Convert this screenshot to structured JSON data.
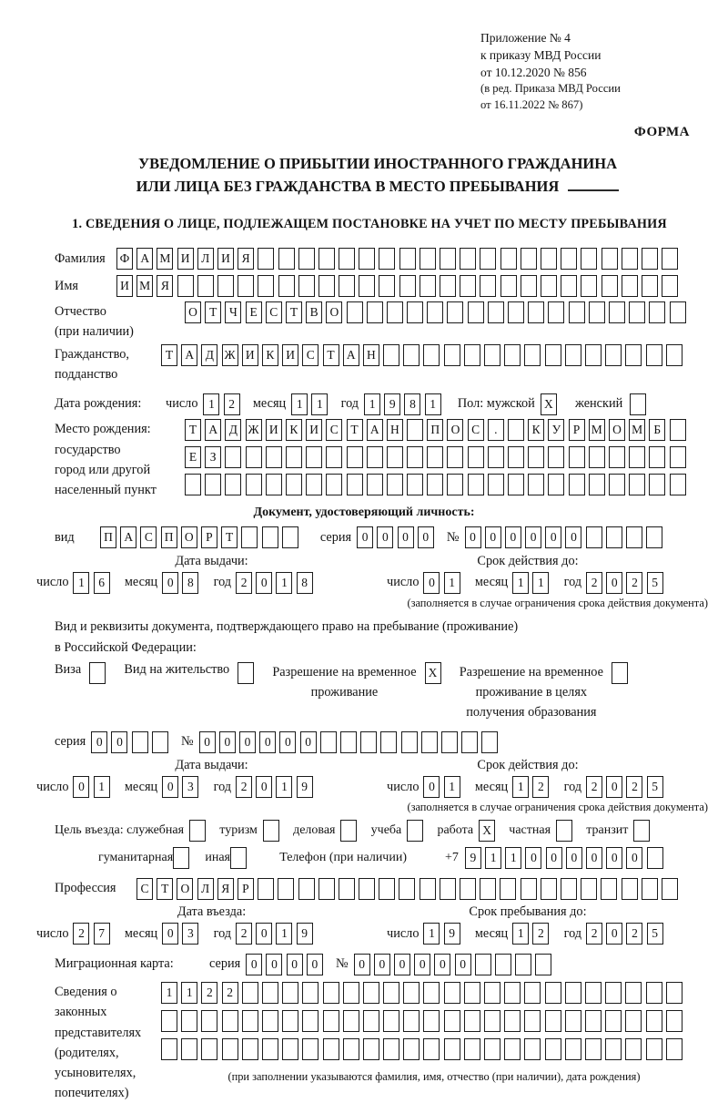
{
  "header": {
    "line1": "Приложение № 4",
    "line2": "к приказу МВД России",
    "line3": "от 10.12.2020 № 856",
    "line4": "(в ред. Приказа МВД России",
    "line5": "от 16.11.2022 № 867)",
    "form_label": "ФОРМА"
  },
  "title": {
    "line1": "УВЕДОМЛЕНИЕ О ПРИБЫТИИ ИНОСТРАННОГО ГРАЖДАНИНА",
    "line2": "ИЛИ ЛИЦА БЕЗ ГРАЖДАНСТВА В МЕСТО ПРЕБЫВАНИЯ"
  },
  "section1": {
    "heading": "1. СВЕДЕНИЯ О ЛИЦЕ, ПОДЛЕЖАЩЕМ ПОСТАНОВКЕ НА УЧЕТ ПО МЕСТУ ПРЕБЫВАНИЯ"
  },
  "labels": {
    "surname": "Фамилия",
    "name": "Имя",
    "patronymic1": "Отчество",
    "patronymic2": "(при наличии)",
    "citizenship1": "Гражданство,",
    "citizenship2": "подданство",
    "birth_date": "Дата рождения:",
    "day": "число",
    "month": "месяц",
    "year": "год",
    "sex_male": "Пол: мужской",
    "sex_female": "женский",
    "birth_place": "Место рождения:",
    "birth_place_state": "государство",
    "birth_place_city1": "город или другой",
    "birth_place_city2": "населенный пункт",
    "identity_doc": "Документ, удостоверяющий личность:",
    "kind": "вид",
    "series": "серия",
    "num": "№",
    "issue_date": "Дата выдачи:",
    "valid_until": "Срок действия до:",
    "limit_note": "(заполняется в случае ограничения срока действия документа)",
    "right_doc1": "Вид и реквизиты документа, подтверждающего право на пребывание (проживание)",
    "right_doc2": "в Российской Федерации:",
    "visa": "Виза",
    "residence_permit": "Вид на жительство",
    "temp_res1": "Разрешение на временное",
    "temp_res2": "проживание",
    "temp_res_edu1": "Разрешение на временное",
    "temp_res_edu2": "проживание в целях",
    "temp_res_edu3": "получения образования",
    "purpose": "Цель въезда: служебная",
    "tourism": "туризм",
    "business": "деловая",
    "study": "учеба",
    "work": "работа",
    "private": "частная",
    "transit": "транзит",
    "humanitarian": "гуманитарная",
    "other": "иная",
    "phone": "Телефон (при наличии)",
    "phone_code": "+7",
    "profession": "Профессия",
    "entry_date": "Дата въезда:",
    "stay_until": "Срок пребывания до:",
    "migration_card": "Миграционная карта:",
    "rep1": "Сведения о",
    "rep2": "законных",
    "rep3": "представителях",
    "rep4": "(родителях,",
    "rep5": "усыновителях,",
    "rep6": "попечителях)",
    "rep_note": "(при заполнении указываются фамилия, имя, отчество (при наличии), дата рождения)"
  },
  "boxes": {
    "surname": {
      "v": "ФАМИЛИЯ",
      "n": 28
    },
    "name": {
      "v": "ИМЯ",
      "n": 28
    },
    "patronymic": {
      "v": "ОТЧЕСТВО",
      "n": 25
    },
    "citizenship": {
      "v": "ТАДЖИКИСТАН",
      "n": 26
    },
    "birth_day": {
      "v": "12",
      "n": 2
    },
    "birth_month": {
      "v": "11",
      "n": 2
    },
    "birth_year": {
      "v": "1981",
      "n": 4
    },
    "male": {
      "v": "X",
      "n": 1
    },
    "female": {
      "v": "",
      "n": 1
    },
    "birthplace1": {
      "v": "ТАДЖИКИСТАН ПОС. КУРМОМБ",
      "n": 25
    },
    "birthplace2": {
      "v": "ЕЗ",
      "n": 25
    },
    "birthplace3": {
      "v": "",
      "n": 25
    },
    "doc_kind": {
      "v": "ПАСПОРТ",
      "n": 10
    },
    "doc_series": {
      "v": "0000",
      "n": 4
    },
    "doc_number": {
      "v": "000000",
      "n": 10
    },
    "doc_issue_day": {
      "v": "16",
      "n": 2
    },
    "doc_issue_month": {
      "v": "08",
      "n": 2
    },
    "doc_issue_year": {
      "v": "2018",
      "n": 4
    },
    "doc_valid_day": {
      "v": "01",
      "n": 2
    },
    "doc_valid_month": {
      "v": "11",
      "n": 2
    },
    "doc_valid_year": {
      "v": "2025",
      "n": 4
    },
    "visa": {
      "v": "",
      "n": 1
    },
    "residence_permit": {
      "v": "",
      "n": 1
    },
    "temp_residence": {
      "v": "X",
      "n": 1
    },
    "temp_residence_edu": {
      "v": "",
      "n": 1
    },
    "permit_series": {
      "v": "00",
      "n": 4
    },
    "permit_number": {
      "v": "000000",
      "n": 15
    },
    "permit_issue_day": {
      "v": "01",
      "n": 2
    },
    "permit_issue_month": {
      "v": "03",
      "n": 2
    },
    "permit_issue_year": {
      "v": "2019",
      "n": 4
    },
    "permit_valid_day": {
      "v": "01",
      "n": 2
    },
    "permit_valid_month": {
      "v": "12",
      "n": 2
    },
    "permit_valid_year": {
      "v": "2025",
      "n": 4
    },
    "p_official": {
      "v": "",
      "n": 1
    },
    "p_tourism": {
      "v": "",
      "n": 1
    },
    "p_business": {
      "v": "",
      "n": 1
    },
    "p_study": {
      "v": "",
      "n": 1
    },
    "p_work": {
      "v": "X",
      "n": 1
    },
    "p_private": {
      "v": "",
      "n": 1
    },
    "p_transit": {
      "v": "",
      "n": 1
    },
    "p_humanitarian": {
      "v": "",
      "n": 1
    },
    "p_other": {
      "v": "",
      "n": 1
    },
    "phone": {
      "v": "911000000",
      "n": 10
    },
    "profession": {
      "v": "СТОЛЯР",
      "n": 27
    },
    "entry_day": {
      "v": "27",
      "n": 2
    },
    "entry_month": {
      "v": "03",
      "n": 2
    },
    "entry_year": {
      "v": "2019",
      "n": 4
    },
    "stay_day": {
      "v": "19",
      "n": 2
    },
    "stay_month": {
      "v": "12",
      "n": 2
    },
    "stay_year": {
      "v": "2025",
      "n": 4
    },
    "mig_series": {
      "v": "0000",
      "n": 4
    },
    "mig_number": {
      "v": "000000",
      "n": 10
    },
    "rep_row1": {
      "v": "1122",
      "n": 26
    },
    "rep_row2": {
      "v": "",
      "n": 26
    },
    "rep_row3": {
      "v": "",
      "n": 26
    }
  }
}
